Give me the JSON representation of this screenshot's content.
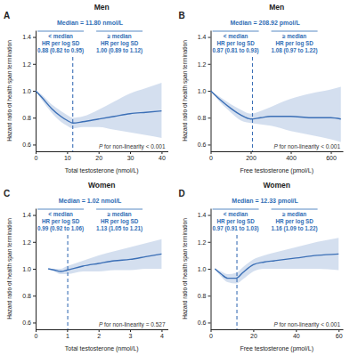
{
  "chart_data": [
    {
      "type": "line",
      "panel": "A",
      "title": "Men",
      "x_label": "Total testosterone (nmol/L)",
      "y_label": "Hazard ratio of health span termination",
      "x": [
        0,
        2,
        5,
        8,
        10,
        11.8,
        15,
        20,
        25,
        30,
        35,
        40
      ],
      "series": [
        {
          "color": "#3b6fb6",
          "values": [
            1.0,
            0.95,
            0.87,
            0.81,
            0.78,
            0.76,
            0.77,
            0.79,
            0.81,
            0.83,
            0.84,
            0.85
          ],
          "lower": [
            1.0,
            0.93,
            0.84,
            0.77,
            0.74,
            0.72,
            0.73,
            0.73,
            0.71,
            0.69,
            0.67,
            0.65
          ],
          "upper": [
            1.0,
            0.97,
            0.9,
            0.85,
            0.82,
            0.8,
            0.81,
            0.86,
            0.92,
            0.98,
            1.02,
            1.06
          ]
        }
      ],
      "xlim": [
        0,
        42
      ],
      "xticks": [
        0,
        10,
        20,
        30,
        40
      ],
      "ylim": [
        0.55,
        1.45
      ],
      "yticks": [
        0.6,
        0.8,
        {
          "value": 1,
          "label": "1.0"
        },
        1.2,
        1.4
      ],
      "median": 11.8,
      "median_label": "Median = 11.80 nmol/L",
      "groups": [
        {
          "label": "< median",
          "hr_label": "HR per log SD",
          "hr": "0.88 (0.82 to 0.95)"
        },
        {
          "label": "≥ median",
          "hr_label": "HR per log SD",
          "hr": "1.00 (0.89 to 1.12)"
        }
      ],
      "p_label": "P for non-linearity < 0.001"
    },
    {
      "type": "line",
      "panel": "B",
      "title": "Men",
      "x_label": "Free testosterone (pmol/L)",
      "y_label": "Hazard ratio of health span termination",
      "x": [
        0,
        50,
        100,
        150,
        200,
        250,
        300,
        400,
        500,
        600,
        650
      ],
      "series": [
        {
          "color": "#3b6fb6",
          "values": [
            1.0,
            0.93,
            0.87,
            0.82,
            0.79,
            0.8,
            0.81,
            0.81,
            0.8,
            0.8,
            0.79
          ],
          "lower": [
            1.0,
            0.91,
            0.84,
            0.78,
            0.76,
            0.75,
            0.74,
            0.7,
            0.67,
            0.64,
            0.62
          ],
          "upper": [
            1.0,
            0.95,
            0.9,
            0.86,
            0.83,
            0.85,
            0.88,
            0.94,
            0.98,
            1.01,
            1.03
          ]
        }
      ],
      "xlim": [
        0,
        660
      ],
      "xticks": [
        0,
        200,
        400,
        600
      ],
      "ylim": [
        0.55,
        1.45
      ],
      "yticks": [
        0.6,
        0.8,
        {
          "value": 1,
          "label": "1.0"
        },
        1.2,
        1.4
      ],
      "median": 208.92,
      "median_label": "Median = 208.92 pmol/L",
      "groups": [
        {
          "label": "< median",
          "hr_label": "HR per log SD",
          "hr": "0.87 (0.81 to 0.93)"
        },
        {
          "label": "≥ median",
          "hr_label": "HR per log SD",
          "hr": "1.08 (0.97 to 1.22)"
        }
      ],
      "p_label": "P for non-linearity < 0.001"
    },
    {
      "type": "line",
      "panel": "C",
      "title": "Women",
      "x_label": "Total testosterone (nmol/L)",
      "y_label": "Hazard ratio of health span termination",
      "x": [
        0.4,
        0.6,
        0.8,
        1.0,
        1.5,
        2,
        2.5,
        3,
        3.5,
        4
      ],
      "series": [
        {
          "color": "#3b6fb6",
          "values": [
            1.0,
            0.99,
            0.98,
            0.99,
            1.02,
            1.04,
            1.06,
            1.07,
            1.09,
            1.11
          ],
          "lower": [
            1.0,
            0.98,
            0.96,
            0.96,
            0.98,
            0.98,
            0.99,
            0.99,
            1.0,
            1.0
          ],
          "upper": [
            1.0,
            1.0,
            1.0,
            1.02,
            1.06,
            1.1,
            1.13,
            1.16,
            1.19,
            1.22
          ]
        }
      ],
      "xlim": [
        0,
        4.2
      ],
      "xticks": [
        0,
        1,
        2,
        3,
        4
      ],
      "ylim": [
        0.55,
        1.45
      ],
      "yticks": [
        0.6,
        0.8,
        {
          "value": 1,
          "label": "1.0"
        },
        1.2,
        1.4
      ],
      "median": 1.02,
      "median_label": "Median = 1.02 nmol/L",
      "groups": [
        {
          "label": "< median",
          "hr_label": "HR per log SD",
          "hr": "0.99 (0.92 to 1.06)"
        },
        {
          "label": "≥ median",
          "hr_label": "HR per log SD",
          "hr": "1.13 (1.05 to 1.21)"
        }
      ],
      "p_label": "P for non-linearity = 0.527"
    },
    {
      "type": "line",
      "panel": "D",
      "title": "Women",
      "x_label": "Free testosterone (pmol/L)",
      "y_label": "Hazard ratio of health span termination",
      "x": [
        2,
        5,
        8,
        12,
        15,
        20,
        25,
        30,
        40,
        50,
        60
      ],
      "series": [
        {
          "color": "#3b6fb6",
          "values": [
            1.0,
            0.96,
            0.93,
            0.93,
            0.97,
            1.03,
            1.05,
            1.06,
            1.08,
            1.1,
            1.11
          ],
          "lower": [
            1.0,
            0.94,
            0.9,
            0.89,
            0.92,
            0.98,
            1.0,
            1.0,
            1.0,
            1.0,
            0.99
          ],
          "upper": [
            1.0,
            0.98,
            0.96,
            0.97,
            1.01,
            1.07,
            1.1,
            1.12,
            1.16,
            1.2,
            1.23
          ]
        }
      ],
      "xlim": [
        0,
        62
      ],
      "xticks": [
        0,
        20,
        40,
        60
      ],
      "ylim": [
        0.55,
        1.45
      ],
      "yticks": [
        0.6,
        0.8,
        {
          "value": 1,
          "label": "1.0"
        },
        1.2,
        1.4
      ],
      "median": 12.33,
      "median_label": "Median = 12.33 pmol/L",
      "groups": [
        {
          "label": "< median",
          "hr_label": "HR per log SD",
          "hr": "0.97 (0.91 to 1.03)"
        },
        {
          "label": "≥ median",
          "hr_label": "HR per log SD",
          "hr": "1.16 (1.09 to 1.22)"
        }
      ],
      "p_label": "P for non-linearity < 0.001"
    }
  ]
}
